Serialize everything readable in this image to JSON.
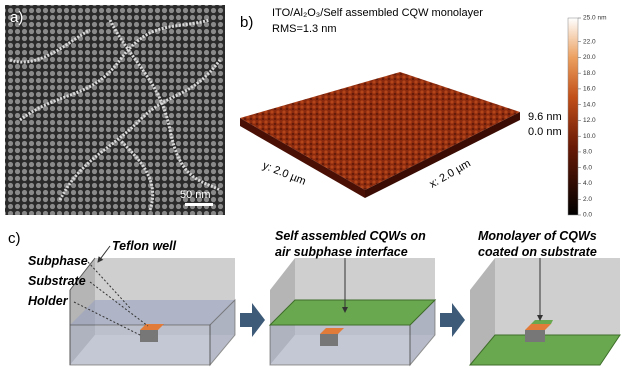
{
  "panel_a": {
    "label": "a)",
    "scale_bar": "50 nm"
  },
  "panel_b": {
    "label": "b)",
    "title": "ITO/Al₂O₃/Self assembled CQW monolayer",
    "rms": "RMS=1.3 nm",
    "y_axis": "y: 2.0 µm",
    "x_axis": "x: 2.0 µm",
    "z_top": "9.6 nm",
    "z_bottom": "0.0 nm",
    "colorbar": {
      "lim": [
        0,
        25
      ],
      "ticks": [
        {
          "value": 0,
          "label": "0.0"
        },
        {
          "value": 2,
          "label": "2.0"
        },
        {
          "value": 4,
          "label": "4.0"
        },
        {
          "value": 6,
          "label": "6.0"
        },
        {
          "value": 8,
          "label": "8.0"
        },
        {
          "value": 10,
          "label": "10.0"
        },
        {
          "value": 12,
          "label": "12.0"
        },
        {
          "value": 14,
          "label": "14.0"
        },
        {
          "value": 16,
          "label": "16.0"
        },
        {
          "value": 18,
          "label": "18.0"
        },
        {
          "value": 20,
          "label": "20.0"
        },
        {
          "value": 22,
          "label": "22.0"
        },
        {
          "value": 25,
          "label": "25.0 nm"
        }
      ]
    }
  },
  "panel_c": {
    "label": "c)",
    "teflon_well": "Teflon well",
    "subphase": "Subphase",
    "substrate": "Substrate",
    "holder": "Holder",
    "step2": [
      "Self assembled CQWs on",
      "air subphase interface"
    ],
    "step3": [
      "Monolayer of CQWs",
      "coated on substrate"
    ]
  }
}
